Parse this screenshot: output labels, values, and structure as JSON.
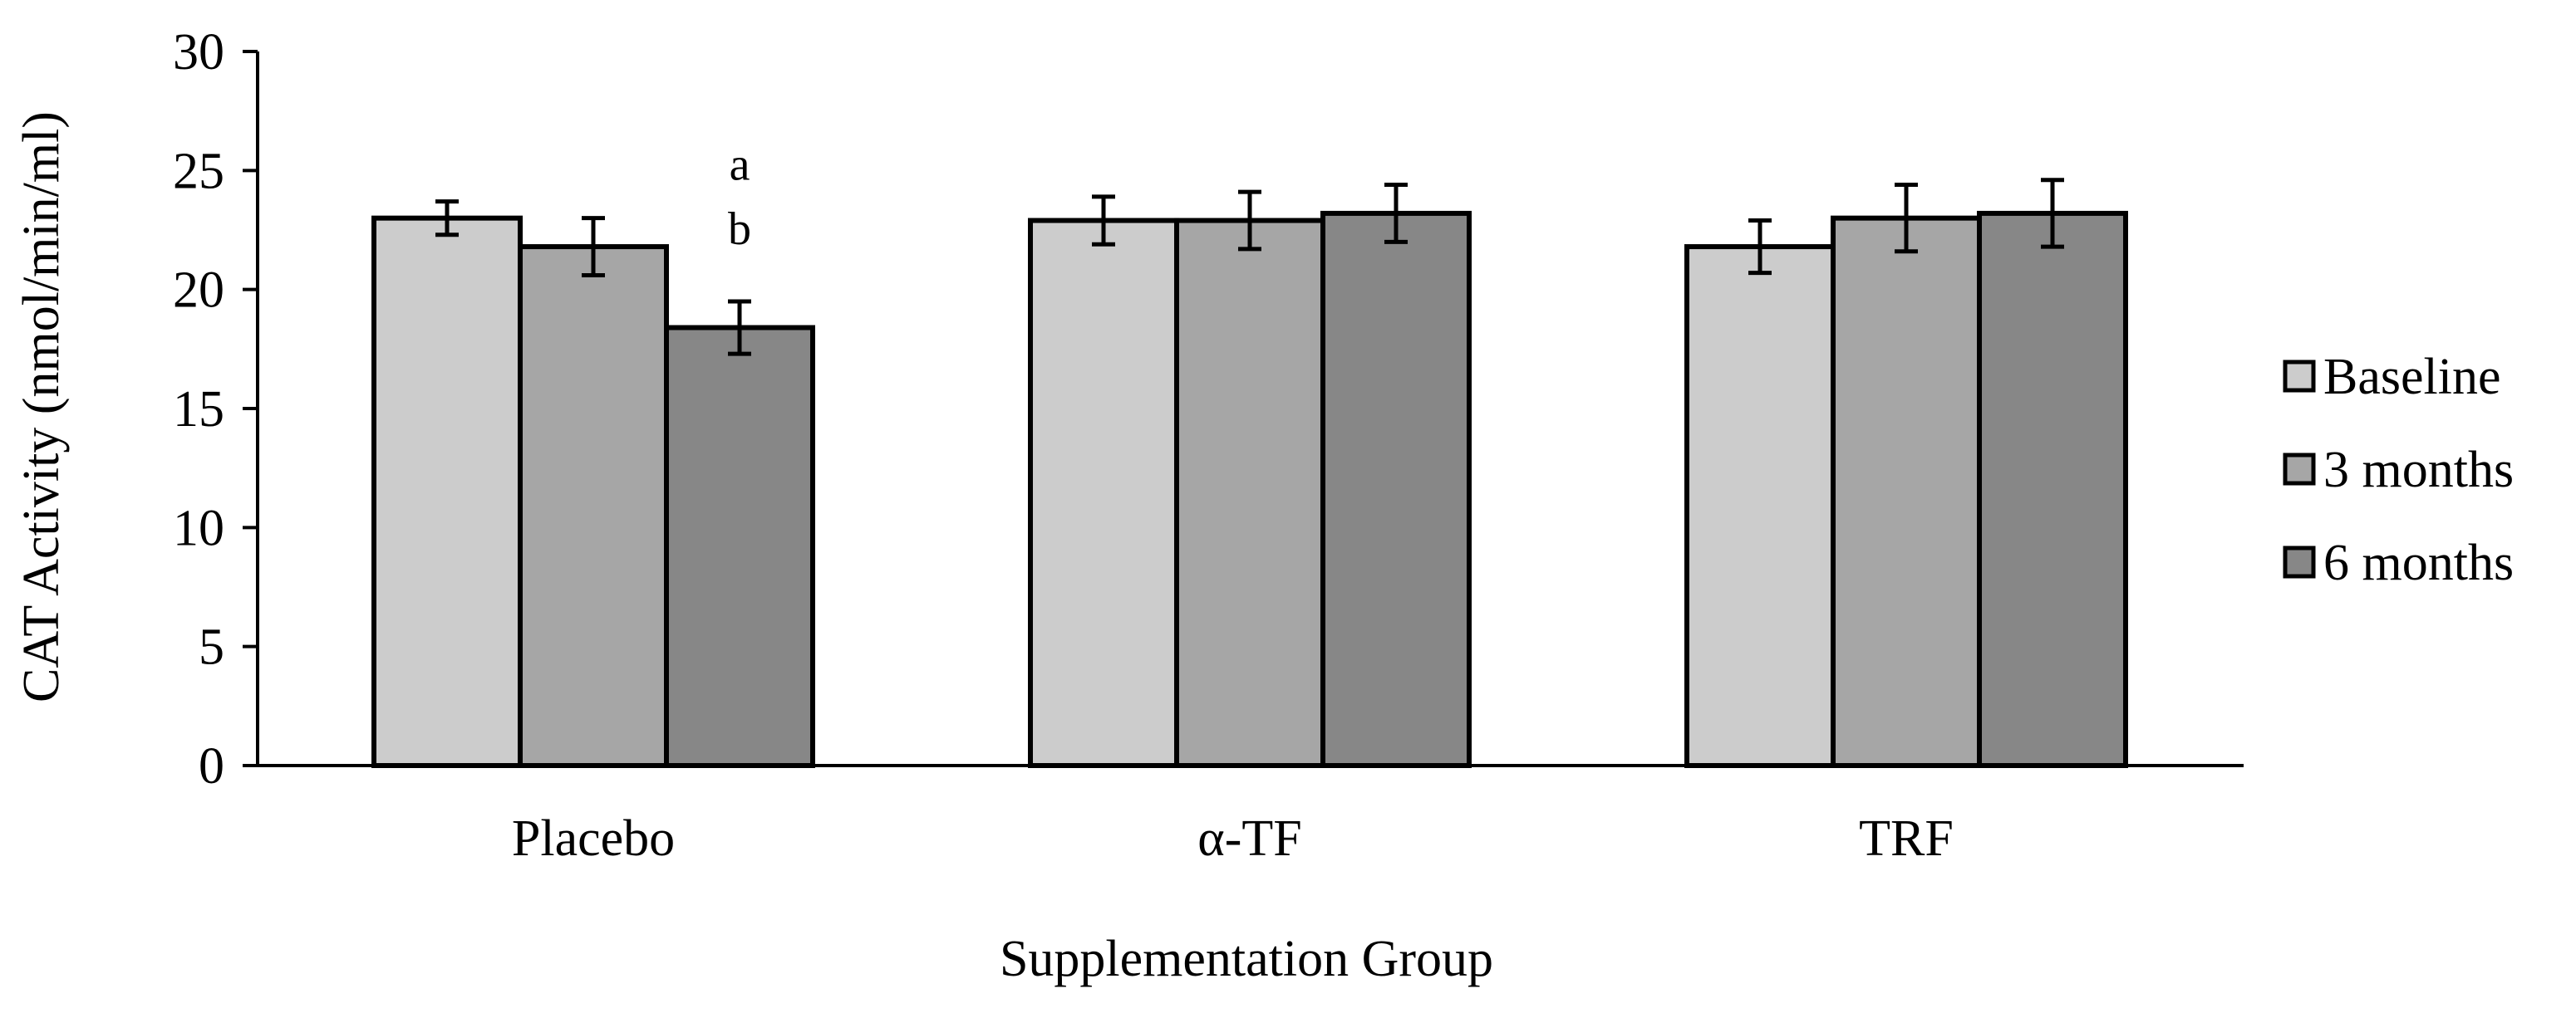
{
  "chart_data": {
    "type": "bar",
    "title": "",
    "xlabel": "Supplementation Group",
    "ylabel": "CAT Activity (nmol/min/ml)",
    "ylim": [
      0,
      30
    ],
    "yticks": [
      0,
      5,
      10,
      15,
      20,
      25,
      30
    ],
    "categories": [
      "Placebo",
      "α-TF",
      "TRF"
    ],
    "series": [
      {
        "name": "Baseline",
        "color": "#cccccc",
        "values": [
          23.0,
          22.9,
          21.8
        ],
        "errors": [
          0.7,
          1.0,
          1.1
        ]
      },
      {
        "name": "3 months",
        "color": "#a6a6a6",
        "values": [
          21.8,
          22.9,
          23.0
        ],
        "errors": [
          1.2,
          1.2,
          1.4
        ]
      },
      {
        "name": "6 months",
        "color": "#878787",
        "values": [
          18.4,
          23.2,
          23.2
        ],
        "errors": [
          1.1,
          1.2,
          1.4
        ]
      }
    ],
    "annotations": [
      {
        "text": "a",
        "category": "Placebo",
        "series": "6 months",
        "value": 25.3
      },
      {
        "text": "b",
        "category": "Placebo",
        "series": "6 months",
        "value": 22.6
      }
    ],
    "legend": "right",
    "grid": false
  }
}
